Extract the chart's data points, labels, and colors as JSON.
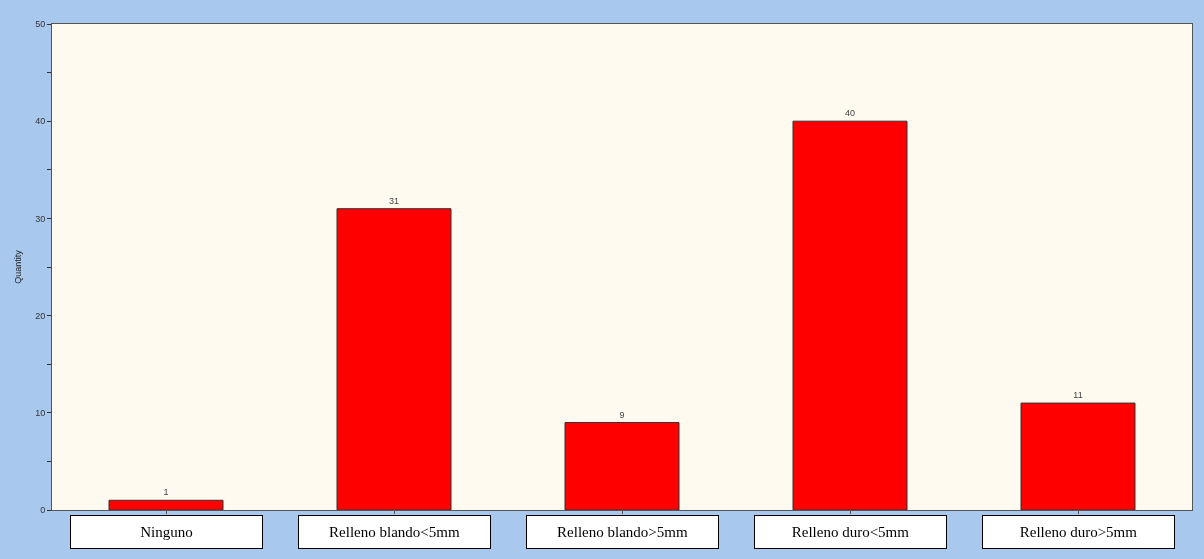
{
  "chart_data": {
    "type": "bar",
    "ylabel": "Quantity",
    "categories": [
      "Ninguno",
      "Relleno blando<5mm",
      "Relleno blando>5mm",
      "Relleno duro<5mm",
      "Relleno duro>5mm"
    ],
    "values": [
      1,
      31,
      9,
      40,
      11
    ],
    "color": "#ff0000",
    "data_labels": true,
    "grid": false,
    "ylim": [
      0,
      50
    ],
    "yticks": [
      0,
      {
        "value": 5,
        "label": null
      },
      10,
      {
        "value": 15,
        "label": null
      },
      20,
      {
        "value": 25,
        "label": null
      },
      30,
      {
        "value": 35,
        "label": null
      },
      40,
      {
        "value": 45,
        "label": null
      },
      50
    ]
  }
}
